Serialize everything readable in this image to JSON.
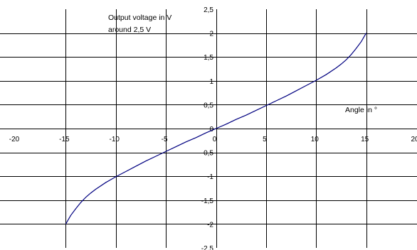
{
  "chart_data": {
    "type": "line",
    "annotations": {
      "ylabel_line1": "Output voltage in V",
      "ylabel_line2": "around 2,5 V",
      "xlabel": "Angle in °"
    },
    "xlim": [
      -20,
      20
    ],
    "ylim": [
      -2.5,
      2.5
    ],
    "x_ticks": [
      -20,
      -15,
      -10,
      -5,
      0,
      5,
      10,
      15,
      20
    ],
    "x_tick_labels": [
      "-20",
      "-15",
      "-10",
      "-5",
      "0",
      "5",
      "10",
      "15",
      "20"
    ],
    "y_ticks": [
      -2.5,
      -2,
      -1.5,
      -1,
      -0.5,
      0,
      0.5,
      1,
      1.5,
      2,
      2.5
    ],
    "y_tick_labels": [
      "-2,5",
      "-2",
      "-1,5",
      "-1",
      "-0,5",
      "0",
      "0,5",
      "1",
      "1,5",
      "2",
      "2,5"
    ],
    "grid": true,
    "colors": {
      "line": "#000080",
      "grid": "#000000"
    },
    "series": [
      {
        "x": [
          -15,
          -14.5,
          -14,
          -13.5,
          -13,
          -12.5,
          -12,
          -11,
          -10,
          -9,
          -8,
          -7,
          -6,
          -5,
          -4,
          -3,
          -2,
          -1,
          0,
          1,
          2,
          3,
          4,
          5,
          6,
          7,
          8,
          9,
          10,
          11,
          12,
          12.5,
          13,
          13.5,
          14,
          14.5,
          15
        ],
        "y": [
          -2.0,
          -1.82,
          -1.68,
          -1.55,
          -1.44,
          -1.35,
          -1.27,
          -1.13,
          -1.01,
          -0.9,
          -0.79,
          -0.68,
          -0.58,
          -0.48,
          -0.38,
          -0.28,
          -0.19,
          -0.09,
          0.0,
          0.09,
          0.19,
          0.28,
          0.38,
          0.48,
          0.58,
          0.68,
          0.79,
          0.9,
          1.01,
          1.13,
          1.27,
          1.35,
          1.44,
          1.55,
          1.68,
          1.82,
          2.0
        ]
      }
    ]
  }
}
